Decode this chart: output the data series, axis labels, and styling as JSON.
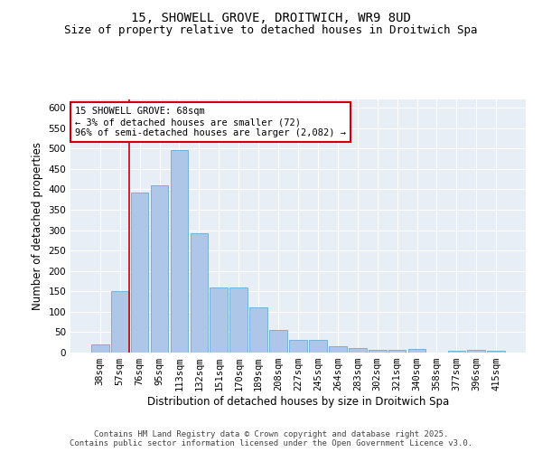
{
  "title_line1": "15, SHOWELL GROVE, DROITWICH, WR9 8UD",
  "title_line2": "Size of property relative to detached houses in Droitwich Spa",
  "xlabel": "Distribution of detached houses by size in Droitwich Spa",
  "ylabel": "Number of detached properties",
  "categories": [
    "38sqm",
    "57sqm",
    "76sqm",
    "95sqm",
    "113sqm",
    "132sqm",
    "151sqm",
    "170sqm",
    "189sqm",
    "208sqm",
    "227sqm",
    "245sqm",
    "264sqm",
    "283sqm",
    "302sqm",
    "321sqm",
    "340sqm",
    "358sqm",
    "377sqm",
    "396sqm",
    "415sqm"
  ],
  "values": [
    20,
    150,
    393,
    410,
    497,
    293,
    160,
    160,
    110,
    55,
    30,
    30,
    16,
    10,
    7,
    7,
    8,
    1,
    5,
    6,
    4
  ],
  "bar_color": "#aec6e8",
  "bar_edge_color": "#6aaad4",
  "vline_x_index": 1,
  "vline_color": "#cc0000",
  "annotation_text": "15 SHOWELL GROVE: 68sqm\n← 3% of detached houses are smaller (72)\n96% of semi-detached houses are larger (2,082) →",
  "annotation_box_color": "#ffffff",
  "annotation_box_edge_color": "#cc0000",
  "ylim": [
    0,
    620
  ],
  "yticks": [
    0,
    50,
    100,
    150,
    200,
    250,
    300,
    350,
    400,
    450,
    500,
    550,
    600
  ],
  "background_color": "#e8eef5",
  "grid_color": "#ffffff",
  "footer_text": "Contains HM Land Registry data © Crown copyright and database right 2025.\nContains public sector information licensed under the Open Government Licence v3.0.",
  "title_fontsize": 10,
  "subtitle_fontsize": 9,
  "axis_label_fontsize": 8.5,
  "tick_fontsize": 7.5,
  "annotation_fontsize": 7.5,
  "footer_fontsize": 6.5
}
